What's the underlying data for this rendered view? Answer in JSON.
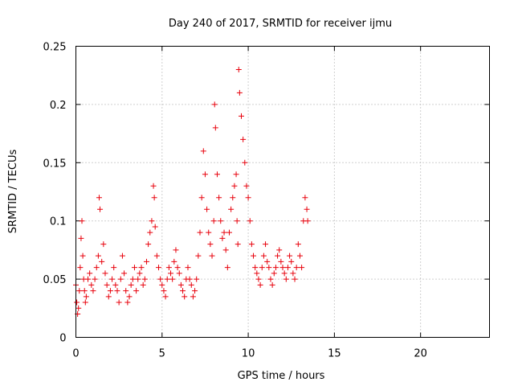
{
  "chart_data": {
    "type": "scatter",
    "title": "Day 240 of 2017, SRMTID for receiver ijmu",
    "xlabel": "GPS time / hours",
    "ylabel": "SRMTID / TECUs",
    "xlim": [
      0,
      24
    ],
    "ylim": [
      0,
      0.25
    ],
    "xticks": [
      0,
      5,
      10,
      15,
      20
    ],
    "yticks": [
      0,
      0.05,
      0.1,
      0.15,
      0.2,
      0.25
    ],
    "xtick_labels": [
      "0",
      "5",
      "10",
      "15",
      "20"
    ],
    "ytick_labels": [
      "0",
      "0.05",
      "0.1",
      "0.15",
      "0.2",
      "0.25"
    ],
    "grid": true,
    "marker": "+",
    "color": "#e8000b",
    "series": [
      {
        "name": "SRMTID",
        "x": [
          0.0,
          0.05,
          0.1,
          0.15,
          0.2,
          0.25,
          0.3,
          0.35,
          0.4,
          0.45,
          0.5,
          0.55,
          0.6,
          0.7,
          0.8,
          0.9,
          1.0,
          1.1,
          1.2,
          1.3,
          1.35,
          1.4,
          1.5,
          1.6,
          1.7,
          1.8,
          1.9,
          2.0,
          2.1,
          2.2,
          2.3,
          2.4,
          2.5,
          2.6,
          2.7,
          2.8,
          2.9,
          3.0,
          3.1,
          3.2,
          3.3,
          3.4,
          3.5,
          3.6,
          3.7,
          3.8,
          3.9,
          4.0,
          4.1,
          4.2,
          4.3,
          4.4,
          4.5,
          4.55,
          4.6,
          4.7,
          4.8,
          4.9,
          5.0,
          5.1,
          5.2,
          5.3,
          5.4,
          5.5,
          5.6,
          5.7,
          5.8,
          5.9,
          6.0,
          6.1,
          6.2,
          6.3,
          6.4,
          6.5,
          6.6,
          6.7,
          6.8,
          6.9,
          7.0,
          7.1,
          7.2,
          7.3,
          7.4,
          7.5,
          7.6,
          7.7,
          7.8,
          7.9,
          8.0,
          8.05,
          8.1,
          8.2,
          8.3,
          8.4,
          8.5,
          8.6,
          8.7,
          8.8,
          8.9,
          9.0,
          9.1,
          9.2,
          9.3,
          9.35,
          9.4,
          9.45,
          9.5,
          9.6,
          9.7,
          9.8,
          9.9,
          10.0,
          10.1,
          10.2,
          10.3,
          10.4,
          10.5,
          10.6,
          10.7,
          10.8,
          10.9,
          11.0,
          11.1,
          11.2,
          11.3,
          11.4,
          11.5,
          11.6,
          11.7,
          11.8,
          11.9,
          12.0,
          12.1,
          12.2,
          12.3,
          12.4,
          12.5,
          12.6,
          12.7,
          12.8,
          12.9,
          13.0,
          13.1,
          13.2,
          13.3,
          13.4,
          13.45
        ],
        "y": [
          0.045,
          0.03,
          0.02,
          0.025,
          0.04,
          0.06,
          0.085,
          0.1,
          0.07,
          0.05,
          0.04,
          0.03,
          0.035,
          0.05,
          0.055,
          0.045,
          0.04,
          0.05,
          0.06,
          0.07,
          0.12,
          0.11,
          0.065,
          0.08,
          0.055,
          0.045,
          0.035,
          0.04,
          0.05,
          0.06,
          0.045,
          0.04,
          0.03,
          0.05,
          0.07,
          0.055,
          0.04,
          0.03,
          0.035,
          0.045,
          0.05,
          0.06,
          0.04,
          0.05,
          0.055,
          0.06,
          0.045,
          0.05,
          0.065,
          0.08,
          0.09,
          0.1,
          0.13,
          0.12,
          0.095,
          0.07,
          0.06,
          0.05,
          0.045,
          0.04,
          0.035,
          0.05,
          0.06,
          0.055,
          0.05,
          0.065,
          0.075,
          0.06,
          0.055,
          0.045,
          0.04,
          0.035,
          0.05,
          0.06,
          0.05,
          0.045,
          0.035,
          0.04,
          0.05,
          0.07,
          0.09,
          0.12,
          0.16,
          0.14,
          0.11,
          0.09,
          0.08,
          0.07,
          0.1,
          0.2,
          0.18,
          0.14,
          0.12,
          0.1,
          0.085,
          0.09,
          0.075,
          0.06,
          0.09,
          0.11,
          0.12,
          0.13,
          0.14,
          0.1,
          0.08,
          0.23,
          0.21,
          0.19,
          0.17,
          0.15,
          0.13,
          0.12,
          0.1,
          0.08,
          0.07,
          0.06,
          0.055,
          0.05,
          0.045,
          0.06,
          0.07,
          0.08,
          0.065,
          0.06,
          0.05,
          0.045,
          0.055,
          0.06,
          0.07,
          0.075,
          0.065,
          0.06,
          0.055,
          0.05,
          0.06,
          0.07,
          0.065,
          0.055,
          0.05,
          0.06,
          0.08,
          0.07,
          0.06,
          0.1,
          0.12,
          0.11,
          0.1
        ]
      }
    ]
  }
}
